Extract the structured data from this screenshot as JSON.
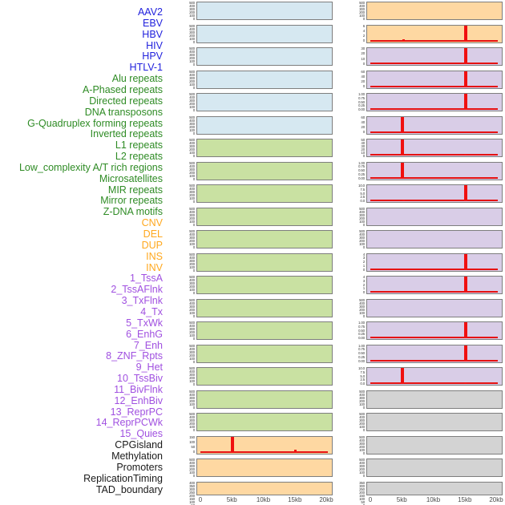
{
  "figure": {
    "x_axis": {
      "tick_labels": [
        "0",
        "5kb",
        "10kb",
        "15kb",
        "20kb"
      ]
    },
    "label_colors": {
      "virus": "#2222dd",
      "repeat": "#2e8b24",
      "sv": "#ffa81e",
      "chromatin": "#a050e0",
      "other": "#1a1a1a"
    },
    "panel_fills": {
      "virus": "#d6e8f1",
      "repeat": "#c9e1a2",
      "sv": "#fed8a2",
      "chromatin": "#d9cde7",
      "other": "#d3d3d3"
    },
    "accent_red": "#f01010"
  },
  "features": [
    {
      "name": "AAV2",
      "group": "virus"
    },
    {
      "name": "EBV",
      "group": "virus"
    },
    {
      "name": "HBV",
      "group": "virus"
    },
    {
      "name": "HIV",
      "group": "virus"
    },
    {
      "name": "HPV",
      "group": "virus"
    },
    {
      "name": "HTLV-1",
      "group": "virus"
    },
    {
      "name": "Alu repeats",
      "group": "repeat"
    },
    {
      "name": "A-Phased repeats",
      "group": "repeat"
    },
    {
      "name": "Directed repeats",
      "group": "repeat"
    },
    {
      "name": "DNA transposons",
      "group": "repeat"
    },
    {
      "name": "G-Quadruplex forming repeats",
      "group": "repeat"
    },
    {
      "name": "Inverted repeats",
      "group": "repeat"
    },
    {
      "name": "L1 repeats",
      "group": "repeat"
    },
    {
      "name": "L2 repeats",
      "group": "repeat"
    },
    {
      "name": "Low_complexity A/T rich regions",
      "group": "repeat"
    },
    {
      "name": "Microsatellites",
      "group": "repeat"
    },
    {
      "name": "MIR repeats",
      "group": "repeat"
    },
    {
      "name": "Mirror repeats",
      "group": "repeat"
    },
    {
      "name": "Z-DNA motifs",
      "group": "repeat"
    },
    {
      "name": "CNV",
      "group": "sv"
    },
    {
      "name": "DEL",
      "group": "sv"
    },
    {
      "name": "DUP",
      "group": "sv"
    },
    {
      "name": "INS",
      "group": "sv"
    },
    {
      "name": "INV",
      "group": "sv"
    },
    {
      "name": "1_TssA",
      "group": "chromatin"
    },
    {
      "name": "2_TssAFlnk",
      "group": "chromatin"
    },
    {
      "name": "3_TxFlnk",
      "group": "chromatin"
    },
    {
      "name": "4_Tx",
      "group": "chromatin"
    },
    {
      "name": "5_TxWk",
      "group": "chromatin"
    },
    {
      "name": "6_EnhG",
      "group": "chromatin"
    },
    {
      "name": "7_Enh",
      "group": "chromatin"
    },
    {
      "name": "8_ZNF_Rpts",
      "group": "chromatin"
    },
    {
      "name": "9_Het",
      "group": "chromatin"
    },
    {
      "name": "10_TssBiv",
      "group": "chromatin"
    },
    {
      "name": "11_BivFlnk",
      "group": "chromatin"
    },
    {
      "name": "12_EnhBiv",
      "group": "chromatin"
    },
    {
      "name": "13_ReprPC",
      "group": "chromatin"
    },
    {
      "name": "14_ReprPCWk",
      "group": "chromatin"
    },
    {
      "name": "15_Quies",
      "group": "chromatin"
    },
    {
      "name": "CPGisland",
      "group": "other"
    },
    {
      "name": "Methylation",
      "group": "other"
    },
    {
      "name": "Promoters",
      "group": "other"
    },
    {
      "name": "ReplicationTiming",
      "group": "other"
    },
    {
      "name": "TAD_boundary",
      "group": "other"
    }
  ],
  "chart_data": {
    "type": "bar",
    "description": "Grid of 44 mini feature-density tracks over a 20kb genomic window; flat filled background per track with red density spikes",
    "x_unit": "kb",
    "x_range": [
      0,
      20
    ],
    "x_tick_labels": [
      "0",
      "5kb",
      "10kb",
      "15kb",
      "20kb"
    ],
    "columns": [
      {
        "id": "left",
        "panels": [
          {
            "feature": "AAV2",
            "group": "virus",
            "y_ticks": [
              "500",
              "400",
              "300",
              "200",
              "100",
              "0"
            ],
            "baseline": false,
            "spikes": []
          },
          {
            "feature": "EBV",
            "group": "virus",
            "y_ticks": [
              "500",
              "400",
              "300",
              "200",
              "100",
              "0"
            ],
            "baseline": false,
            "spikes": []
          },
          {
            "feature": "HBV",
            "group": "virus",
            "y_ticks": [
              "500",
              "400",
              "300",
              "200",
              "100",
              "0"
            ],
            "baseline": false,
            "spikes": []
          },
          {
            "feature": "HIV",
            "group": "virus",
            "y_ticks": [
              "500",
              "400",
              "300",
              "200",
              "100",
              "0"
            ],
            "baseline": false,
            "spikes": []
          },
          {
            "feature": "HPV",
            "group": "virus",
            "y_ticks": [
              "500",
              "400",
              "300",
              "200",
              "100",
              "0"
            ],
            "baseline": false,
            "spikes": []
          },
          {
            "feature": "HTLV-1",
            "group": "virus",
            "y_ticks": [
              "500",
              "400",
              "300",
              "200",
              "100",
              "0"
            ],
            "baseline": false,
            "spikes": []
          },
          {
            "feature": "Alu repeats",
            "group": "repeat",
            "y_ticks": [
              "500",
              "400",
              "300",
              "200",
              "100",
              "0"
            ],
            "baseline": false,
            "spikes": []
          },
          {
            "feature": "A-Phased repeats",
            "group": "repeat",
            "y_ticks": [
              "500",
              "400",
              "300",
              "200",
              "100",
              "0"
            ],
            "baseline": false,
            "spikes": []
          },
          {
            "feature": "Directed repeats",
            "group": "repeat",
            "y_ticks": [
              "500",
              "400",
              "300",
              "200",
              "100",
              "0"
            ],
            "baseline": false,
            "spikes": []
          },
          {
            "feature": "DNA transposons",
            "group": "repeat",
            "y_ticks": [
              "500",
              "400",
              "300",
              "200",
              "100",
              "0"
            ],
            "baseline": false,
            "spikes": []
          },
          {
            "feature": "G-Quadruplex forming repeats",
            "group": "repeat",
            "y_ticks": [
              "500",
              "400",
              "300",
              "200",
              "100",
              "0"
            ],
            "baseline": false,
            "spikes": []
          },
          {
            "feature": "Inverted repeats",
            "group": "repeat",
            "y_ticks": [
              "500",
              "400",
              "300",
              "200",
              "100",
              "0"
            ],
            "baseline": false,
            "spikes": []
          },
          {
            "feature": "L1 repeats",
            "group": "repeat",
            "y_ticks": [
              "500",
              "400",
              "300",
              "200",
              "100",
              "0"
            ],
            "baseline": false,
            "spikes": []
          },
          {
            "feature": "L2 repeats",
            "group": "repeat",
            "y_ticks": [
              "500",
              "400",
              "300",
              "200",
              "100",
              "0"
            ],
            "baseline": false,
            "spikes": []
          },
          {
            "feature": "Low_complexity A/T rich regions",
            "group": "repeat",
            "y_ticks": [
              "500",
              "400",
              "300",
              "200",
              "100",
              "0"
            ],
            "baseline": false,
            "spikes": []
          },
          {
            "feature": "Microsatellites",
            "group": "repeat",
            "y_ticks": [
              "500",
              "400",
              "300",
              "200",
              "100",
              "0"
            ],
            "baseline": false,
            "spikes": []
          },
          {
            "feature": "MIR repeats",
            "group": "repeat",
            "y_ticks": [
              "500",
              "400",
              "300",
              "200",
              "100",
              "0"
            ],
            "baseline": false,
            "spikes": []
          },
          {
            "feature": "Mirror repeats",
            "group": "repeat",
            "y_ticks": [
              "500",
              "400",
              "300",
              "200",
              "100",
              "0"
            ],
            "baseline": false,
            "spikes": []
          },
          {
            "feature": "Z-DNA motifs",
            "group": "repeat",
            "y_ticks": [
              "500",
              "400",
              "300",
              "200",
              "100",
              "0"
            ],
            "baseline": false,
            "spikes": []
          },
          {
            "feature": "CNV",
            "group": "sv",
            "y_ticks": [
              "150",
              "100",
              "50",
              "0"
            ],
            "baseline": true,
            "spikes": [
              {
                "x_kb": 5,
                "frac": 1.0
              },
              {
                "x_kb": 15,
                "frac": 0.2
              }
            ]
          },
          {
            "feature": "DEL",
            "group": "sv",
            "y_ticks": [
              "500",
              "400",
              "300",
              "200",
              "100",
              "0"
            ],
            "baseline": false,
            "spikes": []
          },
          {
            "feature": "DUP",
            "group": "sv",
            "y_ticks": [
              "400",
              "350",
              "300",
              "250",
              "200",
              "150",
              "100",
              "50",
              "0"
            ],
            "baseline": false,
            "spikes": []
          }
        ]
      },
      {
        "id": "right",
        "panels": [
          {
            "feature": "INS",
            "group": "sv",
            "y_ticks": [
              "500",
              "400",
              "300",
              "200",
              "100",
              "0"
            ],
            "baseline": false,
            "spikes": []
          },
          {
            "feature": "INV",
            "group": "sv",
            "y_ticks": [
              "6",
              "4",
              "2",
              "0"
            ],
            "baseline": true,
            "spikes": [
              {
                "x_kb": 5.2,
                "frac": 0.14
              },
              {
                "x_kb": 15,
                "frac": 1.0
              }
            ]
          },
          {
            "feature": "1_TssA",
            "group": "chromatin",
            "y_ticks": [
              "30",
              "20",
              "10",
              "0"
            ],
            "baseline": true,
            "spikes": [
              {
                "x_kb": 15,
                "frac": 1.0
              }
            ]
          },
          {
            "feature": "2_TssAFlnk",
            "group": "chromatin",
            "y_ticks": [
              "60",
              "40",
              "20",
              "0"
            ],
            "baseline": true,
            "spikes": [
              {
                "x_kb": 15,
                "frac": 1.0
              }
            ]
          },
          {
            "feature": "3_TxFlnk",
            "group": "chromatin",
            "y_ticks": [
              "1.00",
              "0.75",
              "0.50",
              "0.25",
              "0.00"
            ],
            "baseline": true,
            "spikes": [
              {
                "x_kb": 15,
                "frac": 1.0
              }
            ]
          },
          {
            "feature": "4_Tx",
            "group": "chromatin",
            "y_ticks": [
              "60",
              "40",
              "20",
              "0"
            ],
            "baseline": true,
            "spikes": [
              {
                "x_kb": 5,
                "frac": 1.0
              }
            ]
          },
          {
            "feature": "5_TxWk",
            "group": "chromatin",
            "y_ticks": [
              "50",
              "40",
              "30",
              "20",
              "10",
              "0"
            ],
            "baseline": true,
            "spikes": [
              {
                "x_kb": 5,
                "frac": 1.0
              },
              {
                "x_kb": 15,
                "frac": 0.07
              }
            ]
          },
          {
            "feature": "6_EnhG",
            "group": "chromatin",
            "y_ticks": [
              "1.00",
              "0.75",
              "0.50",
              "0.25",
              "0.00"
            ],
            "baseline": true,
            "spikes": [
              {
                "x_kb": 5,
                "frac": 1.0
              }
            ]
          },
          {
            "feature": "7_Enh",
            "group": "chromatin",
            "y_ticks": [
              "10.0",
              "7.5",
              "5.0",
              "2.5",
              "0.0"
            ],
            "baseline": true,
            "spikes": [
              {
                "x_kb": 5.2,
                "frac": 0.1
              },
              {
                "x_kb": 15,
                "frac": 1.0
              }
            ]
          },
          {
            "feature": "8_ZNF_Rpts",
            "group": "chromatin",
            "y_ticks": [
              "500",
              "400",
              "300",
              "200",
              "100",
              "0"
            ],
            "baseline": false,
            "spikes": []
          },
          {
            "feature": "9_Het",
            "group": "chromatin",
            "y_ticks": [
              "500",
              "400",
              "300",
              "200",
              "100",
              "0"
            ],
            "baseline": false,
            "spikes": []
          },
          {
            "feature": "10_TssBiv",
            "group": "chromatin",
            "y_ticks": [
              "4",
              "3",
              "2",
              "1",
              "0"
            ],
            "baseline": true,
            "spikes": [
              {
                "x_kb": 15,
                "frac": 1.0
              }
            ]
          },
          {
            "feature": "11_BivFlnk",
            "group": "chromatin",
            "y_ticks": [
              "4",
              "3",
              "2",
              "1",
              "0"
            ],
            "baseline": true,
            "spikes": [
              {
                "x_kb": 15,
                "frac": 1.0
              }
            ]
          },
          {
            "feature": "12_EnhBiv",
            "group": "chromatin",
            "y_ticks": [
              "500",
              "400",
              "300",
              "200",
              "100",
              "0"
            ],
            "baseline": false,
            "spikes": []
          },
          {
            "feature": "13_ReprPC",
            "group": "chromatin",
            "y_ticks": [
              "1.00",
              "0.75",
              "0.50",
              "0.25",
              "0.00"
            ],
            "baseline": true,
            "spikes": [
              {
                "x_kb": 15,
                "frac": 1.0
              }
            ]
          },
          {
            "feature": "14_ReprPCWk",
            "group": "chromatin",
            "y_ticks": [
              "1.00",
              "0.75",
              "0.50",
              "0.25",
              "0.00"
            ],
            "baseline": true,
            "spikes": [
              {
                "x_kb": 15,
                "frac": 1.0
              }
            ]
          },
          {
            "feature": "15_Quies",
            "group": "chromatin",
            "y_ticks": [
              "10.0",
              "7.5",
              "5.0",
              "2.5",
              "0.0"
            ],
            "baseline": true,
            "spikes": [
              {
                "x_kb": 5,
                "frac": 1.0
              },
              {
                "x_kb": 15,
                "frac": 0.12
              }
            ]
          },
          {
            "feature": "CPGisland",
            "group": "other",
            "y_ticks": [
              "500",
              "400",
              "300",
              "200",
              "100",
              "0"
            ],
            "baseline": false,
            "spikes": []
          },
          {
            "feature": "Methylation",
            "group": "other",
            "y_ticks": [
              "500",
              "400",
              "300",
              "200",
              "100",
              "0"
            ],
            "baseline": false,
            "spikes": []
          },
          {
            "feature": "Promoters",
            "group": "other",
            "y_ticks": [
              "500",
              "400",
              "300",
              "200",
              "100",
              "0"
            ],
            "baseline": false,
            "spikes": []
          },
          {
            "feature": "ReplicationTiming",
            "group": "other",
            "y_ticks": [
              "500",
              "400",
              "300",
              "200",
              "100",
              "0"
            ],
            "baseline": false,
            "spikes": []
          },
          {
            "feature": "TAD_boundary",
            "group": "other",
            "y_ticks": [
              "350",
              "300",
              "250",
              "200",
              "150",
              "100",
              "50",
              "0"
            ],
            "baseline": false,
            "spikes": []
          }
        ]
      }
    ]
  }
}
